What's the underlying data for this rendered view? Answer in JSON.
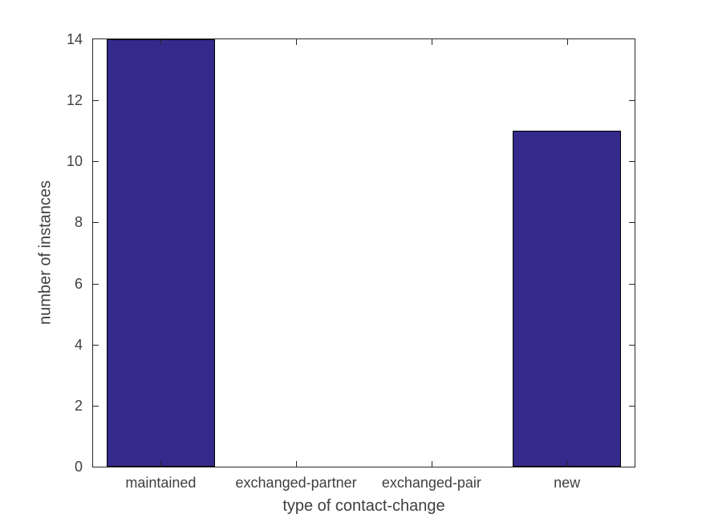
{
  "chart_data": {
    "type": "bar",
    "title": "",
    "categories": [
      "maintained",
      "exchanged-partner",
      "exchanged-pair",
      "new"
    ],
    "values": [
      14,
      0,
      0,
      11
    ],
    "xlabel": "type of contact-change",
    "ylabel": "number of instances",
    "ylim": [
      0,
      14
    ],
    "yticks": [
      0,
      2,
      4,
      6,
      8,
      10,
      12,
      14
    ],
    "bar_width_fraction": 0.8,
    "grid": false,
    "legend": null,
    "box": true,
    "colors": {
      "bar_fill": "#352A8C",
      "bar_edge": "#000000",
      "axis": "#262626",
      "text": "#404040",
      "background": "#ffffff"
    }
  }
}
